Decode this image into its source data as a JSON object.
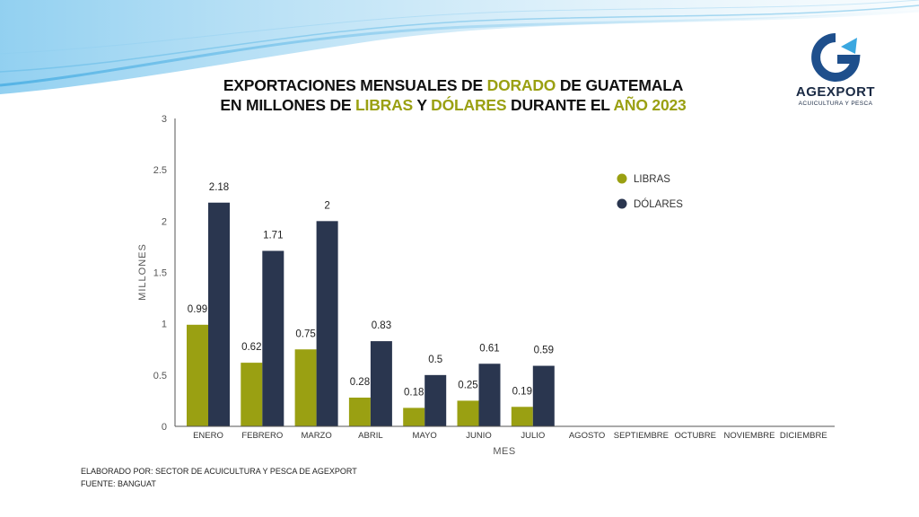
{
  "title": {
    "line1_a": "EXPORTACIONES MENSUALES DE ",
    "line1_hl": "DORADO",
    "line1_b": " DE GUATEMALA",
    "line2_a": "EN MILLONES DE ",
    "line2_hl1": "LIBRAS",
    "line2_b": " Y ",
    "line2_hl2": "DÓLARES",
    "line2_c": " DURANTE EL ",
    "line2_hl3": "AÑO 2023"
  },
  "logo": {
    "name": "AGEXPORT",
    "subtitle": "ACUICULTURA Y PESCA",
    "icon": "agexport-g-icon"
  },
  "colors": {
    "libras": "#9aa012",
    "dolares": "#2a364f",
    "highlight": "#9aa012",
    "axis": "#555555"
  },
  "chart_data": {
    "type": "bar",
    "categories": [
      "ENERO",
      "FEBRERO",
      "MARZO",
      "ABRIL",
      "MAYO",
      "JUNIO",
      "JULIO",
      "AGOSTO",
      "SEPTIEMBRE",
      "OCTUBRE",
      "NOVIEMBRE",
      "DICIEMBRE"
    ],
    "series": [
      {
        "name": "LIBRAS",
        "values": [
          0.99,
          0.62,
          0.75,
          0.28,
          0.18,
          0.25,
          0.19,
          null,
          null,
          null,
          null,
          null
        ]
      },
      {
        "name": "DÓLARES",
        "values": [
          2.18,
          1.71,
          2,
          0.83,
          0.5,
          0.61,
          0.59,
          null,
          null,
          null,
          null,
          null
        ]
      }
    ],
    "xlabel": "MES",
    "ylabel": "MILLONES",
    "ylim": [
      0,
      3
    ],
    "yticks": [
      "0",
      "0.5",
      "1",
      "1.5",
      "2",
      "2.5",
      "3"
    ],
    "legend_position": "top-right",
    "grid": false
  },
  "footer": {
    "line1": "ELABORADO POR: SECTOR DE ACUICULTURA Y PESCA DE AGEXPORT",
    "line2": "FUENTE:  BANGUAT"
  }
}
